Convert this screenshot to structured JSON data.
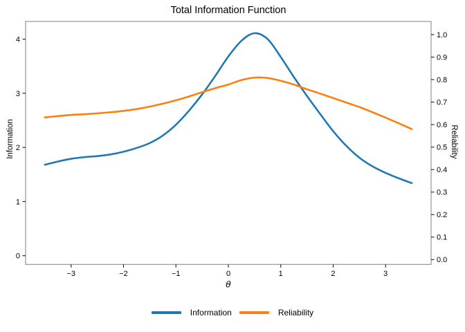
{
  "chart_data": {
    "type": "line",
    "title": "Total Information Function",
    "xlabel": "θ",
    "ylabel_left": "Information",
    "ylabel_right": "Reliability",
    "grid": false,
    "legend_position": "bottom",
    "spine_color": "#8a8a8a",
    "tick_color": "#1a1a1a",
    "x_range": [
      -3.868,
      3.868
    ],
    "y_left_range": [
      -0.161,
      4.327
    ],
    "y_right_range": [
      -0.0215,
      1.0585
    ],
    "x_ticks": [
      {
        "value": -3,
        "label": "−3"
      },
      {
        "value": -2,
        "label": "−2"
      },
      {
        "value": -1,
        "label": "−1"
      },
      {
        "value": 0,
        "label": "0"
      },
      {
        "value": 1,
        "label": "1"
      },
      {
        "value": 2,
        "label": "2"
      },
      {
        "value": 3,
        "label": "3"
      }
    ],
    "y_left_ticks": [
      {
        "value": 0,
        "label": "0"
      },
      {
        "value": 1,
        "label": "1"
      },
      {
        "value": 2,
        "label": "2"
      },
      {
        "value": 3,
        "label": "3"
      },
      {
        "value": 4,
        "label": "4"
      }
    ],
    "y_right_ticks": [
      {
        "value": 0.0,
        "label": "0.0"
      },
      {
        "value": 0.1,
        "label": "0.1"
      },
      {
        "value": 0.2,
        "label": "0.2"
      },
      {
        "value": 0.3,
        "label": "0.3"
      },
      {
        "value": 0.4,
        "label": "0.4"
      },
      {
        "value": 0.5,
        "label": "0.5"
      },
      {
        "value": 0.6,
        "label": "0.6"
      },
      {
        "value": 0.7,
        "label": "0.7"
      },
      {
        "value": 0.8,
        "label": "0.8"
      },
      {
        "value": 0.9,
        "label": "0.9"
      },
      {
        "value": 1.0,
        "label": "1.0"
      }
    ],
    "x": [
      -3.5,
      -3.25,
      -3.0,
      -2.75,
      -2.5,
      -2.25,
      -2.0,
      -1.75,
      -1.5,
      -1.25,
      -1.0,
      -0.75,
      -0.5,
      -0.25,
      0.0,
      0.25,
      0.5,
      0.75,
      1.0,
      1.25,
      1.5,
      1.75,
      2.0,
      2.25,
      2.5,
      2.75,
      3.0,
      3.25,
      3.5
    ],
    "series": [
      {
        "name": "Information",
        "axis": "left",
        "color": "#1f77b4",
        "values": [
          1.68,
          1.74,
          1.79,
          1.82,
          1.84,
          1.87,
          1.92,
          1.99,
          2.08,
          2.22,
          2.42,
          2.68,
          2.98,
          3.32,
          3.68,
          3.97,
          4.11,
          4.0,
          3.67,
          3.3,
          2.95,
          2.62,
          2.3,
          2.03,
          1.81,
          1.65,
          1.53,
          1.43,
          1.34
        ]
      },
      {
        "name": "Reliability",
        "axis": "right",
        "color": "#ff7f0e",
        "values": [
          0.632,
          0.638,
          0.643,
          0.646,
          0.65,
          0.655,
          0.661,
          0.669,
          0.68,
          0.693,
          0.708,
          0.725,
          0.744,
          0.762,
          0.778,
          0.798,
          0.809,
          0.807,
          0.795,
          0.778,
          0.757,
          0.738,
          0.718,
          0.698,
          0.678,
          0.655,
          0.631,
          0.606,
          0.58
        ]
      }
    ]
  }
}
